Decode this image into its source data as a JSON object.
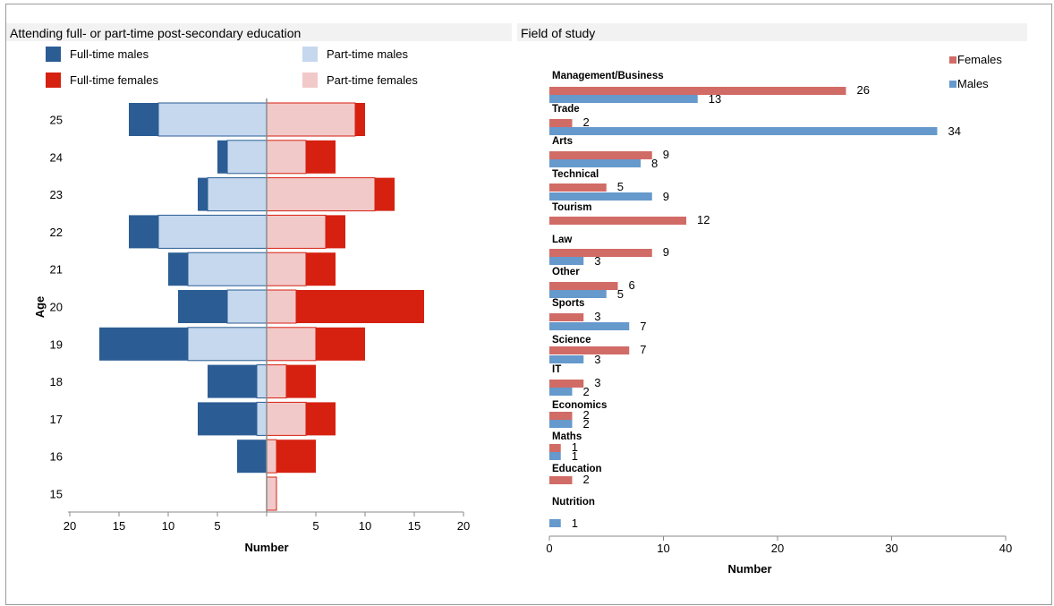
{
  "colors": {
    "fulltime_males": "#2b5d94",
    "parttime_males": "#c5d8ee",
    "fulltime_females": "#d62010",
    "parttime_females": "#f2c9c9",
    "field_females": "#d16b66",
    "field_males": "#6699cc"
  },
  "chart_data": [
    {
      "type": "bar",
      "orientation": "horizontal-diverging",
      "title": "Attending full- or part-time post-secondary education",
      "xlabel": "Number",
      "ylabel": "Age",
      "categories": [
        "25",
        "24",
        "23",
        "22",
        "21",
        "20",
        "19",
        "18",
        "17",
        "16",
        "15"
      ],
      "xlim": [
        -20,
        20
      ],
      "x_tick_labels": [
        "20",
        "15",
        "10",
        "5",
        "",
        "5",
        "10",
        "15",
        "20"
      ],
      "legend": [
        "Full-time males",
        "Part-time males",
        "Full-time females",
        "Part-time females"
      ],
      "series": [
        {
          "name": "Full-time males",
          "side": "left",
          "values": [
            3,
            1,
            1,
            3,
            2,
            5,
            9,
            5,
            6,
            3,
            0
          ]
        },
        {
          "name": "Part-time males",
          "side": "left",
          "values": [
            11,
            4,
            6,
            11,
            8,
            4,
            8,
            1,
            1,
            0,
            0
          ]
        },
        {
          "name": "Full-time females",
          "side": "right",
          "values": [
            1,
            3,
            2,
            2,
            3,
            13,
            5,
            3,
            3,
            4,
            0
          ]
        },
        {
          "name": "Part-time females",
          "side": "right",
          "values": [
            9,
            4,
            11,
            6,
            4,
            3,
            5,
            2,
            4,
            1,
            1
          ]
        }
      ],
      "grid": false,
      "legend_position": "top"
    },
    {
      "type": "bar",
      "orientation": "horizontal",
      "title": "Field of study",
      "xlabel": "Number",
      "categories": [
        "Management/Business",
        "Trade",
        "Arts",
        "Technical",
        "Tourism",
        "Law",
        "Other",
        "Sports",
        "Science",
        "IT",
        "Economics",
        "Maths",
        "Education",
        "Nutrition"
      ],
      "xlim": [
        0,
        40
      ],
      "x_ticks": [
        0,
        10,
        20,
        30,
        40
      ],
      "series": [
        {
          "name": "Females",
          "values": [
            26,
            2,
            9,
            5,
            12,
            9,
            6,
            3,
            7,
            3,
            2,
            1,
            2,
            null
          ]
        },
        {
          "name": "Males",
          "values": [
            13,
            34,
            8,
            9,
            null,
            3,
            5,
            7,
            3,
            2,
            2,
            1,
            null,
            1
          ]
        }
      ],
      "grid": false,
      "legend_position": "top-right"
    }
  ]
}
